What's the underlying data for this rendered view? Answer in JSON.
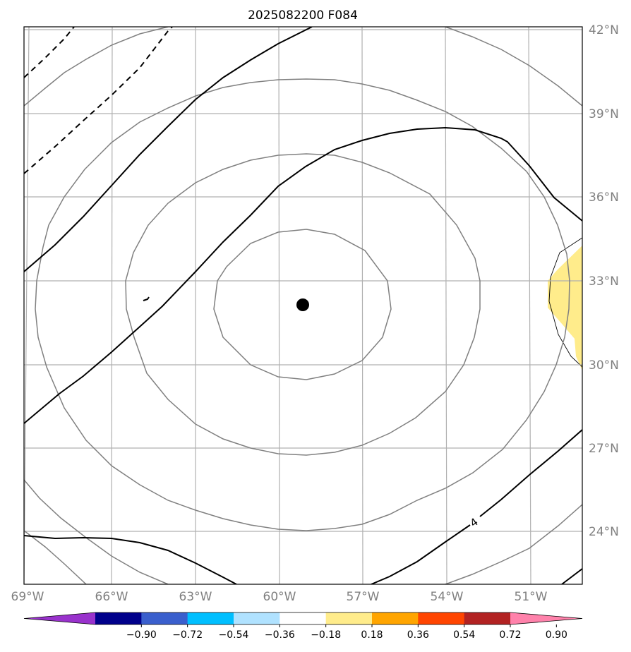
{
  "chart_data": {
    "type": "map",
    "title": "2025082200 F084",
    "projection": "lambert-conformal",
    "center_marker": {
      "lon": -58.9,
      "lat": 32.2,
      "color": "#000000"
    },
    "lon_ticks": [
      {
        "value": -69,
        "label": "69°W"
      },
      {
        "value": -66,
        "label": "66°W"
      },
      {
        "value": -63,
        "label": "63°W"
      },
      {
        "value": -60,
        "label": "60°W"
      },
      {
        "value": -57,
        "label": "57°W"
      },
      {
        "value": -54,
        "label": "54°W"
      },
      {
        "value": -51,
        "label": "51°W"
      }
    ],
    "lat_ticks": [
      {
        "value": 42,
        "label": "42°N"
      },
      {
        "value": 39,
        "label": "39°N"
      },
      {
        "value": 36,
        "label": "36°N"
      },
      {
        "value": 33,
        "label": "33°N"
      },
      {
        "value": 30,
        "label": "30°N"
      },
      {
        "value": 27,
        "label": "27°N"
      },
      {
        "value": 24,
        "label": "24°N"
      }
    ],
    "grid": true,
    "grid_color": "#b0b0b0",
    "range_rings_color": "#808080",
    "contour_label": "4",
    "shaded_region": {
      "value_range": [
        0.18,
        0.36
      ],
      "color": "#ffec8b",
      "location": "east edge near 33°N"
    },
    "colorbar": {
      "orientation": "horizontal",
      "extend": "both",
      "levels": [
        -0.9,
        -0.72,
        -0.54,
        -0.36,
        -0.18,
        0.18,
        0.36,
        0.54,
        0.72,
        0.9
      ],
      "tick_labels": [
        "−0.90",
        "−0.72",
        "−0.54",
        "−0.36",
        "−0.18",
        "0.18",
        "0.36",
        "0.54",
        "0.72",
        "0.90"
      ],
      "colors": [
        "#9932cc",
        "#00008b",
        "#3a5fcd",
        "#00bfff",
        "#b0e2ff",
        "#ffffff",
        "#ffec8b",
        "#ffa500",
        "#ff4500",
        "#b22222",
        "#ff82ab"
      ]
    }
  }
}
